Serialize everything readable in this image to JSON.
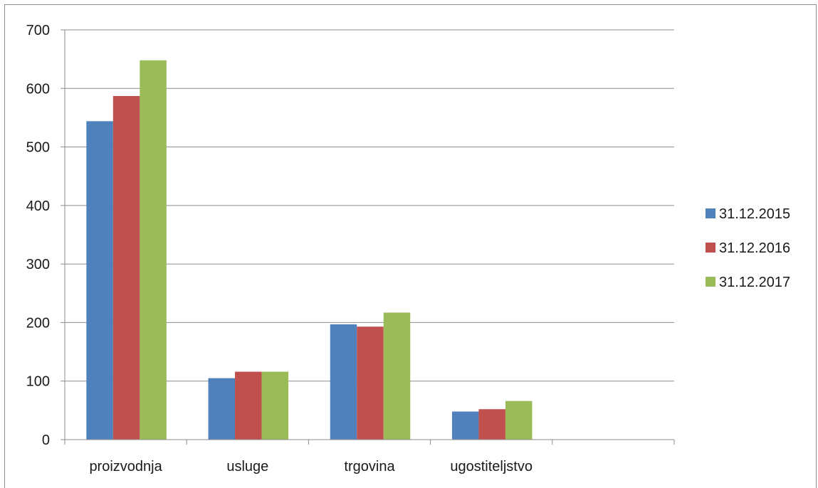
{
  "chart_data": {
    "type": "bar",
    "title": "",
    "xlabel": "",
    "ylabel": "",
    "categories": [
      "proizvodnja",
      "usluge",
      "trgovina",
      "ugostiteljstvo",
      ""
    ],
    "series": [
      {
        "name": "31.12.2015",
        "color": "#4f81bd",
        "values": [
          544,
          105,
          197,
          48,
          null
        ]
      },
      {
        "name": "31.12.2016",
        "color": "#c0504d",
        "values": [
          587,
          116,
          193,
          52,
          null
        ]
      },
      {
        "name": "31.12.2017",
        "color": "#9bbb59",
        "values": [
          648,
          116,
          217,
          66,
          null
        ]
      }
    ],
    "ylim": [
      0,
      700
    ],
    "yticks": [
      0,
      100,
      200,
      300,
      400,
      500,
      600,
      700
    ],
    "grid": true,
    "legend": "right"
  }
}
